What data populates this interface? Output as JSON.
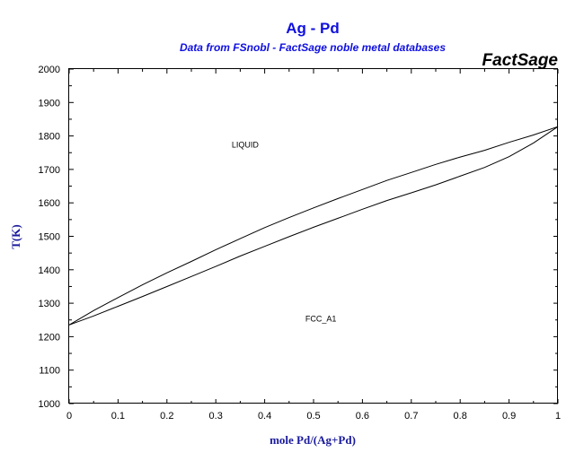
{
  "chart_data": {
    "type": "line",
    "title": "Ag - Pd",
    "subtitle": "Data from FSnobl - FactSage noble metal databases",
    "brand": "FactSage",
    "xlabel": "mole Pd/(Ag+Pd)",
    "ylabel": "T(K)",
    "xlim": [
      0,
      1
    ],
    "ylim": [
      1000,
      2000
    ],
    "x_ticks": [
      "0",
      "0.1",
      "0.2",
      "0.3",
      "0.4",
      "0.5",
      "0.6",
      "0.7",
      "0.8",
      "0.9",
      "1"
    ],
    "y_ticks": [
      "1000",
      "1100",
      "1200",
      "1300",
      "1400",
      "1500",
      "1600",
      "1700",
      "1800",
      "1900",
      "2000"
    ],
    "grid": false,
    "series": [
      {
        "x": [
          0,
          0.05,
          0.1,
          0.15,
          0.2,
          0.25,
          0.3,
          0.35,
          0.4,
          0.45,
          0.5,
          0.55,
          0.6,
          0.65,
          0.7,
          0.75,
          0.8,
          0.85,
          0.9,
          0.95,
          1.0
        ],
        "values": [
          1235,
          1278,
          1317,
          1355,
          1391,
          1425,
          1460,
          1493,
          1526,
          1556,
          1585,
          1613,
          1640,
          1667,
          1691,
          1715,
          1737,
          1757,
          1781,
          1803,
          1828
        ]
      },
      {
        "x": [
          0,
          0.05,
          0.1,
          0.15,
          0.2,
          0.25,
          0.3,
          0.35,
          0.4,
          0.45,
          0.5,
          0.55,
          0.6,
          0.65,
          0.7,
          0.75,
          0.8,
          0.85,
          0.9,
          0.95,
          1.0
        ],
        "values": [
          1235,
          1262,
          1291,
          1320,
          1350,
          1380,
          1410,
          1441,
          1470,
          1499,
          1527,
          1554,
          1581,
          1607,
          1630,
          1654,
          1680,
          1706,
          1738,
          1779,
          1828
        ]
      }
    ],
    "annotations": [
      {
        "text": "LIQUID",
        "x": 0.36,
        "y": 1765
      },
      {
        "text": "FCC_A1",
        "x": 0.515,
        "y": 1245
      }
    ]
  }
}
